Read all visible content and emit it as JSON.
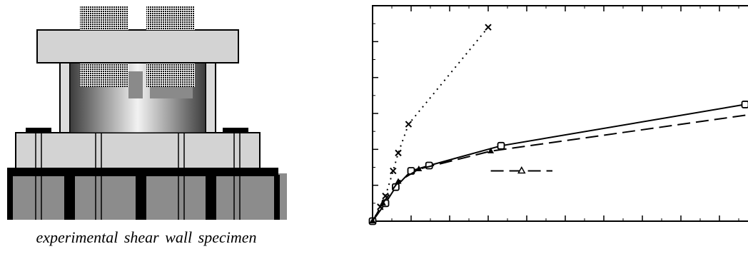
{
  "caption": "experimental shear wall specimen",
  "colors": {
    "black": "#000000",
    "base_gray": "#8c8c8c",
    "slab_gray": "#d3d3d3",
    "column_gray": "#dcdcdc"
  },
  "chart_data": {
    "type": "line",
    "title": "",
    "xlabel": "",
    "ylabel": "",
    "xlim": [
      0,
      150
    ],
    "ylim": [
      0,
      60
    ],
    "grid": false,
    "tick_labels_shown": false,
    "series": [
      {
        "style": "dotted",
        "marker": "x",
        "points": [
          [
            0,
            0
          ],
          [
            3,
            4
          ],
          [
            5,
            7
          ],
          [
            8,
            14
          ],
          [
            10,
            19
          ],
          [
            14,
            27
          ],
          [
            45,
            54
          ]
        ]
      },
      {
        "style": "solid",
        "marker": "square",
        "points": [
          [
            0,
            0
          ],
          [
            5,
            5
          ],
          [
            9,
            9.5
          ],
          [
            15,
            14
          ],
          [
            22,
            15.5
          ],
          [
            50,
            21
          ],
          [
            145,
            32.5
          ]
        ]
      },
      {
        "style": "dashed",
        "marker": "triangle-filled",
        "points": [
          [
            0,
            0
          ],
          [
            4,
            5
          ],
          [
            10,
            11
          ],
          [
            18,
            14.5
          ],
          [
            46,
            19.5
          ],
          [
            150,
            30
          ]
        ]
      },
      {
        "style": "dashed",
        "marker": "triangle-open",
        "points": [
          [
            46,
            14
          ],
          [
            70,
            14
          ]
        ]
      }
    ]
  }
}
